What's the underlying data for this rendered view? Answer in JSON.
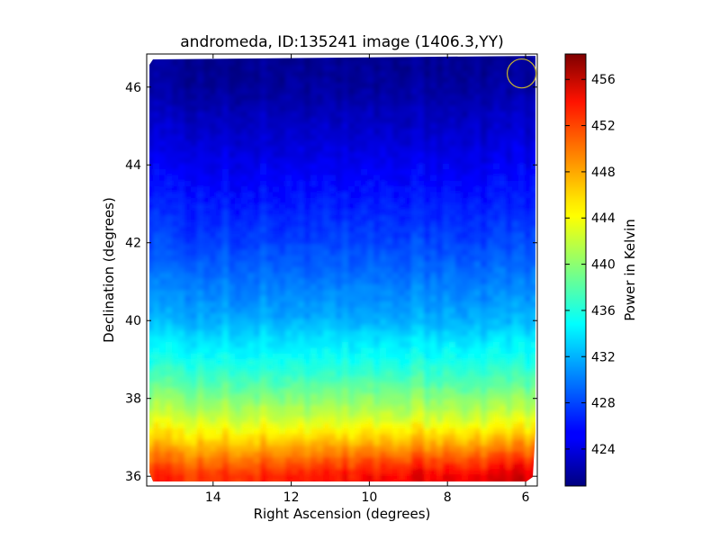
{
  "chart_data": {
    "type": "heatmap",
    "title": "andromeda, ID:135241 image (1406.3,YY)",
    "xlabel": "Right Ascension (degrees)",
    "ylabel": "Declination (degrees)",
    "colorbar_label": "Power in Kelvin",
    "x_reversed": true,
    "xlim": [
      15.7,
      5.7
    ],
    "ylim": [
      35.75,
      46.85
    ],
    "x_ticks": [
      {
        "value": 14,
        "label": "14"
      },
      {
        "value": 12,
        "label": "12"
      },
      {
        "value": 10,
        "label": "10"
      },
      {
        "value": 8,
        "label": "8"
      },
      {
        "value": 6,
        "label": "6"
      }
    ],
    "y_ticks": [
      {
        "value": 36,
        "label": "36"
      },
      {
        "value": 38,
        "label": "38"
      },
      {
        "value": 40,
        "label": "40"
      },
      {
        "value": 42,
        "label": "42"
      },
      {
        "value": 44,
        "label": "44"
      },
      {
        "value": 46,
        "label": "46"
      }
    ],
    "colorbar_range": [
      420.8,
      458.2
    ],
    "colorbar_ticks": [
      {
        "value": 424,
        "label": "424"
      },
      {
        "value": 428,
        "label": "428"
      },
      {
        "value": 432,
        "label": "432"
      },
      {
        "value": 436,
        "label": "436"
      },
      {
        "value": 440,
        "label": "440"
      },
      {
        "value": 444,
        "label": "444"
      },
      {
        "value": 448,
        "label": "448"
      },
      {
        "value": 452,
        "label": "452"
      },
      {
        "value": 456,
        "label": "456"
      }
    ],
    "colormap": "jet",
    "heatmap_dec_profile": [
      {
        "dec": 36.0,
        "value": 453.5
      },
      {
        "dec": 36.5,
        "value": 450.0
      },
      {
        "dec": 37.0,
        "value": 446.0
      },
      {
        "dec": 37.5,
        "value": 442.5
      },
      {
        "dec": 38.0,
        "value": 440.0
      },
      {
        "dec": 38.5,
        "value": 437.5
      },
      {
        "dec": 39.0,
        "value": 435.5
      },
      {
        "dec": 39.5,
        "value": 434.0
      },
      {
        "dec": 40.0,
        "value": 432.0
      },
      {
        "dec": 41.0,
        "value": 430.0
      },
      {
        "dec": 42.0,
        "value": 428.0
      },
      {
        "dec": 43.0,
        "value": 426.5
      },
      {
        "dec": 44.0,
        "value": 425.0
      },
      {
        "dec": 45.0,
        "value": 423.5
      },
      {
        "dec": 46.0,
        "value": 422.0
      },
      {
        "dec": 46.8,
        "value": 421.5
      }
    ],
    "marker": {
      "type": "circle",
      "ra": 6.1,
      "dec": 46.35,
      "radius_deg": 0.37,
      "color": "#c8b432"
    }
  }
}
